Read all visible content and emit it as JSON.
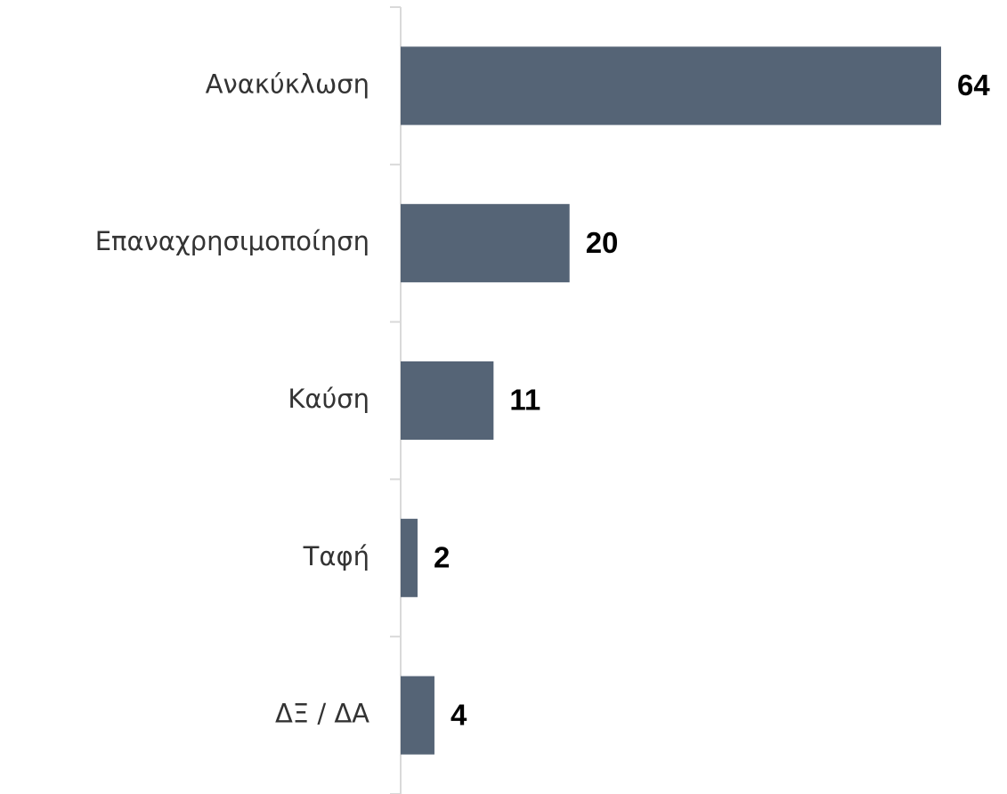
{
  "chart_data": {
    "type": "barh",
    "categories": [
      "Ανακύκλωση",
      "Επαναχρησιμοποίηση",
      "Καύση",
      "Ταφή",
      "ΔΞ / ΔΑ"
    ],
    "values": [
      64,
      20,
      11,
      2,
      4
    ],
    "color": "#556476"
  }
}
